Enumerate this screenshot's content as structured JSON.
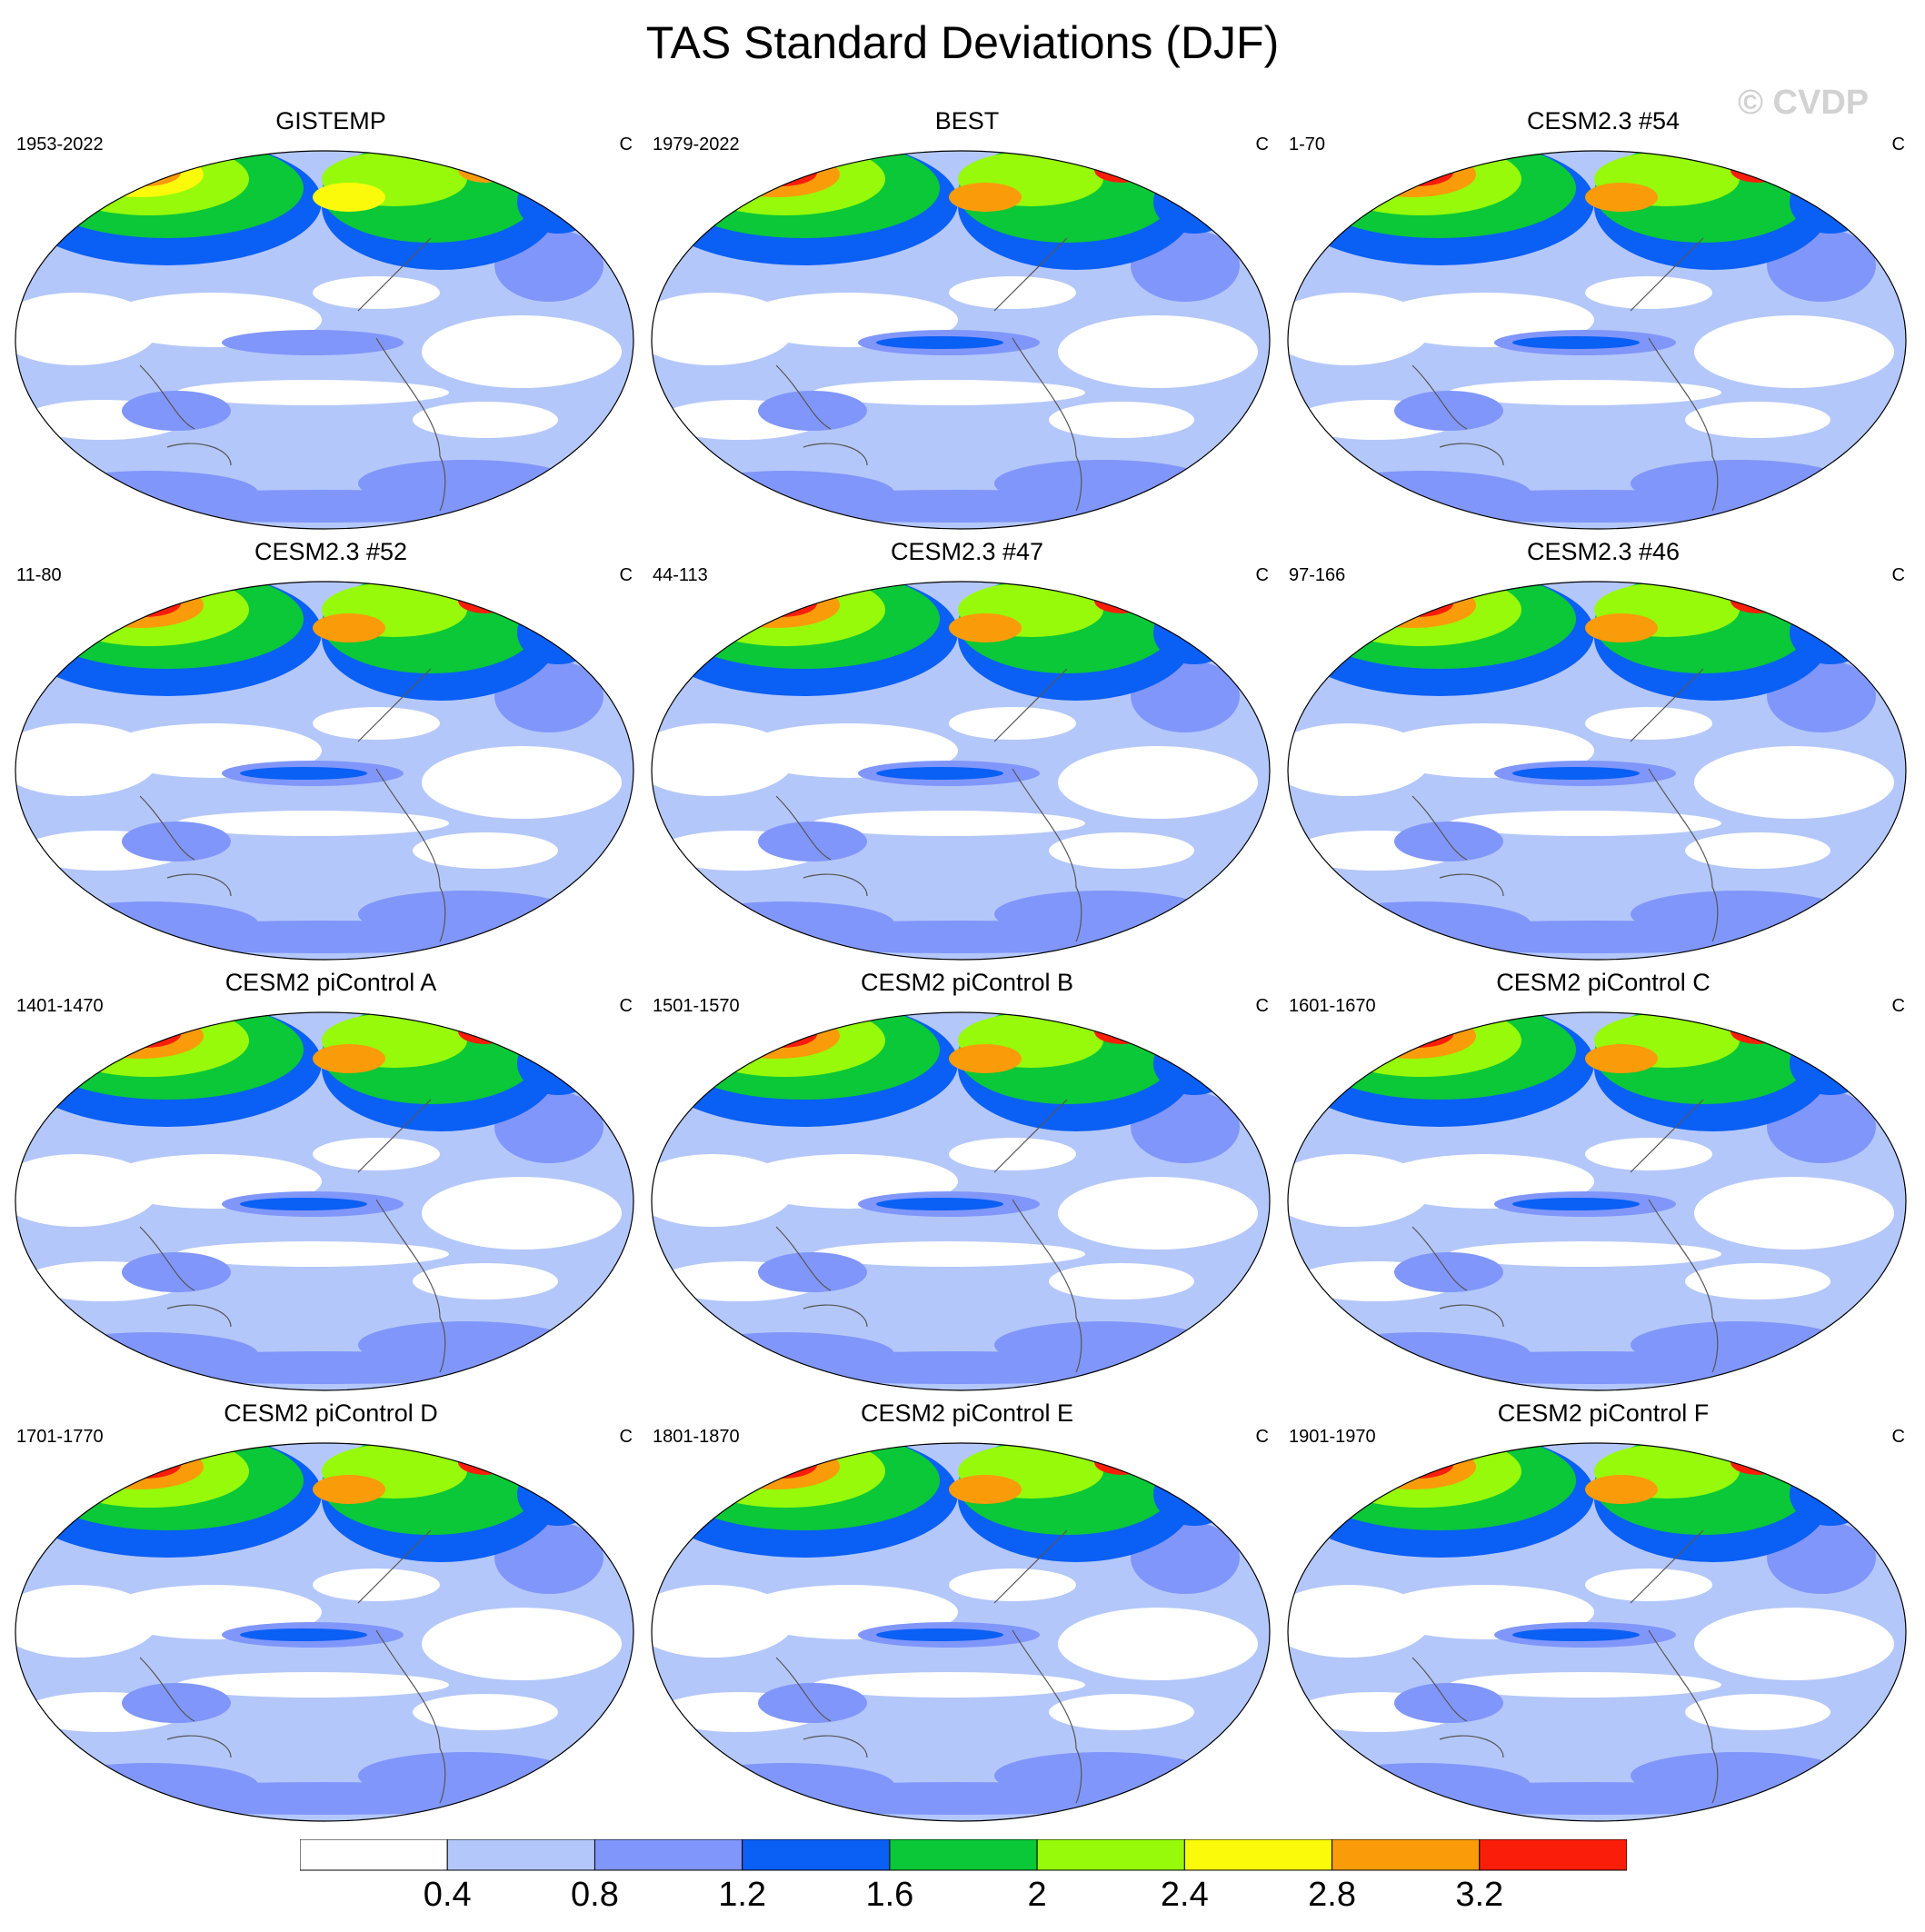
{
  "title": "TAS Standard Deviations (DJF)",
  "watermark": "© CVDP",
  "units": "C",
  "panels": [
    {
      "title": "GISTEMP",
      "period": "1953-2022",
      "pattern": "obs1"
    },
    {
      "title": "BEST",
      "period": "1979-2022",
      "pattern": "obs2"
    },
    {
      "title": "CESM2.3 #54",
      "period": "1-70",
      "pattern": "model"
    },
    {
      "title": "CESM2.3 #52",
      "period": "11-80",
      "pattern": "model"
    },
    {
      "title": "CESM2.3 #47",
      "period": "44-113",
      "pattern": "model"
    },
    {
      "title": "CESM2.3 #46",
      "period": "97-166",
      "pattern": "model"
    },
    {
      "title": "CESM2 piControl A",
      "period": "1401-1470",
      "pattern": "model"
    },
    {
      "title": "CESM2 piControl B",
      "period": "1501-1570",
      "pattern": "model"
    },
    {
      "title": "CESM2 piControl C",
      "period": "1601-1670",
      "pattern": "model"
    },
    {
      "title": "CESM2 piControl D",
      "period": "1701-1770",
      "pattern": "model"
    },
    {
      "title": "CESM2 piControl E",
      "period": "1801-1870",
      "pattern": "model"
    },
    {
      "title": "CESM2 piControl F",
      "period": "1901-1970",
      "pattern": "model"
    }
  ],
  "colorbar": {
    "labels": [
      "0.4",
      "0.8",
      "1.2",
      "1.6",
      "2",
      "2.4",
      "2.8",
      "3.2"
    ],
    "colors": [
      "#ffffff",
      "#b4c7fa",
      "#8096fa",
      "#0a5ff5",
      "#0ac837",
      "#96fa0a",
      "#fafa0a",
      "#fa9b0a",
      "#fa1e0a"
    ]
  }
}
